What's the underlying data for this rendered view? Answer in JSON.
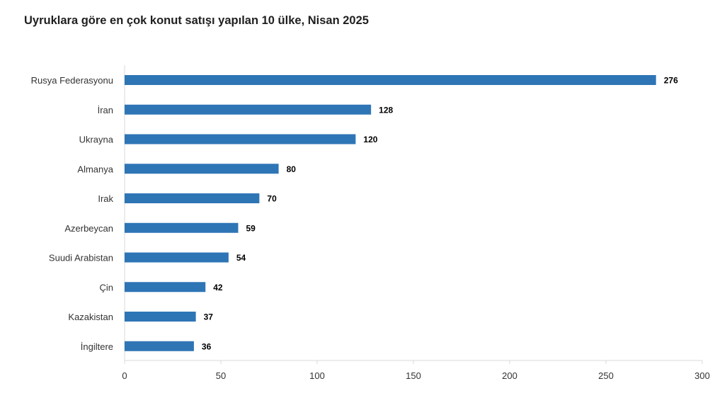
{
  "chart_data": {
    "type": "bar",
    "orientation": "horizontal",
    "title": "Uyruklara göre en çok konut satışı yapılan 10 ülke, Nisan 2025",
    "xlabel": "",
    "ylabel": "",
    "categories": [
      "Rusya Federasyonu",
      "İran",
      "Ukrayna",
      "Almanya",
      "Irak",
      "Azerbeycan",
      "Suudi Arabistan",
      "Çin",
      "Kazakistan",
      "İngiltere"
    ],
    "values": [
      276,
      128,
      120,
      80,
      70,
      59,
      54,
      42,
      37,
      36
    ],
    "xlim": [
      0,
      300
    ],
    "ticks": [
      0,
      50,
      100,
      150,
      200,
      250,
      300
    ],
    "grid": false,
    "legend": "none",
    "bar_color": "#2e75b6"
  }
}
